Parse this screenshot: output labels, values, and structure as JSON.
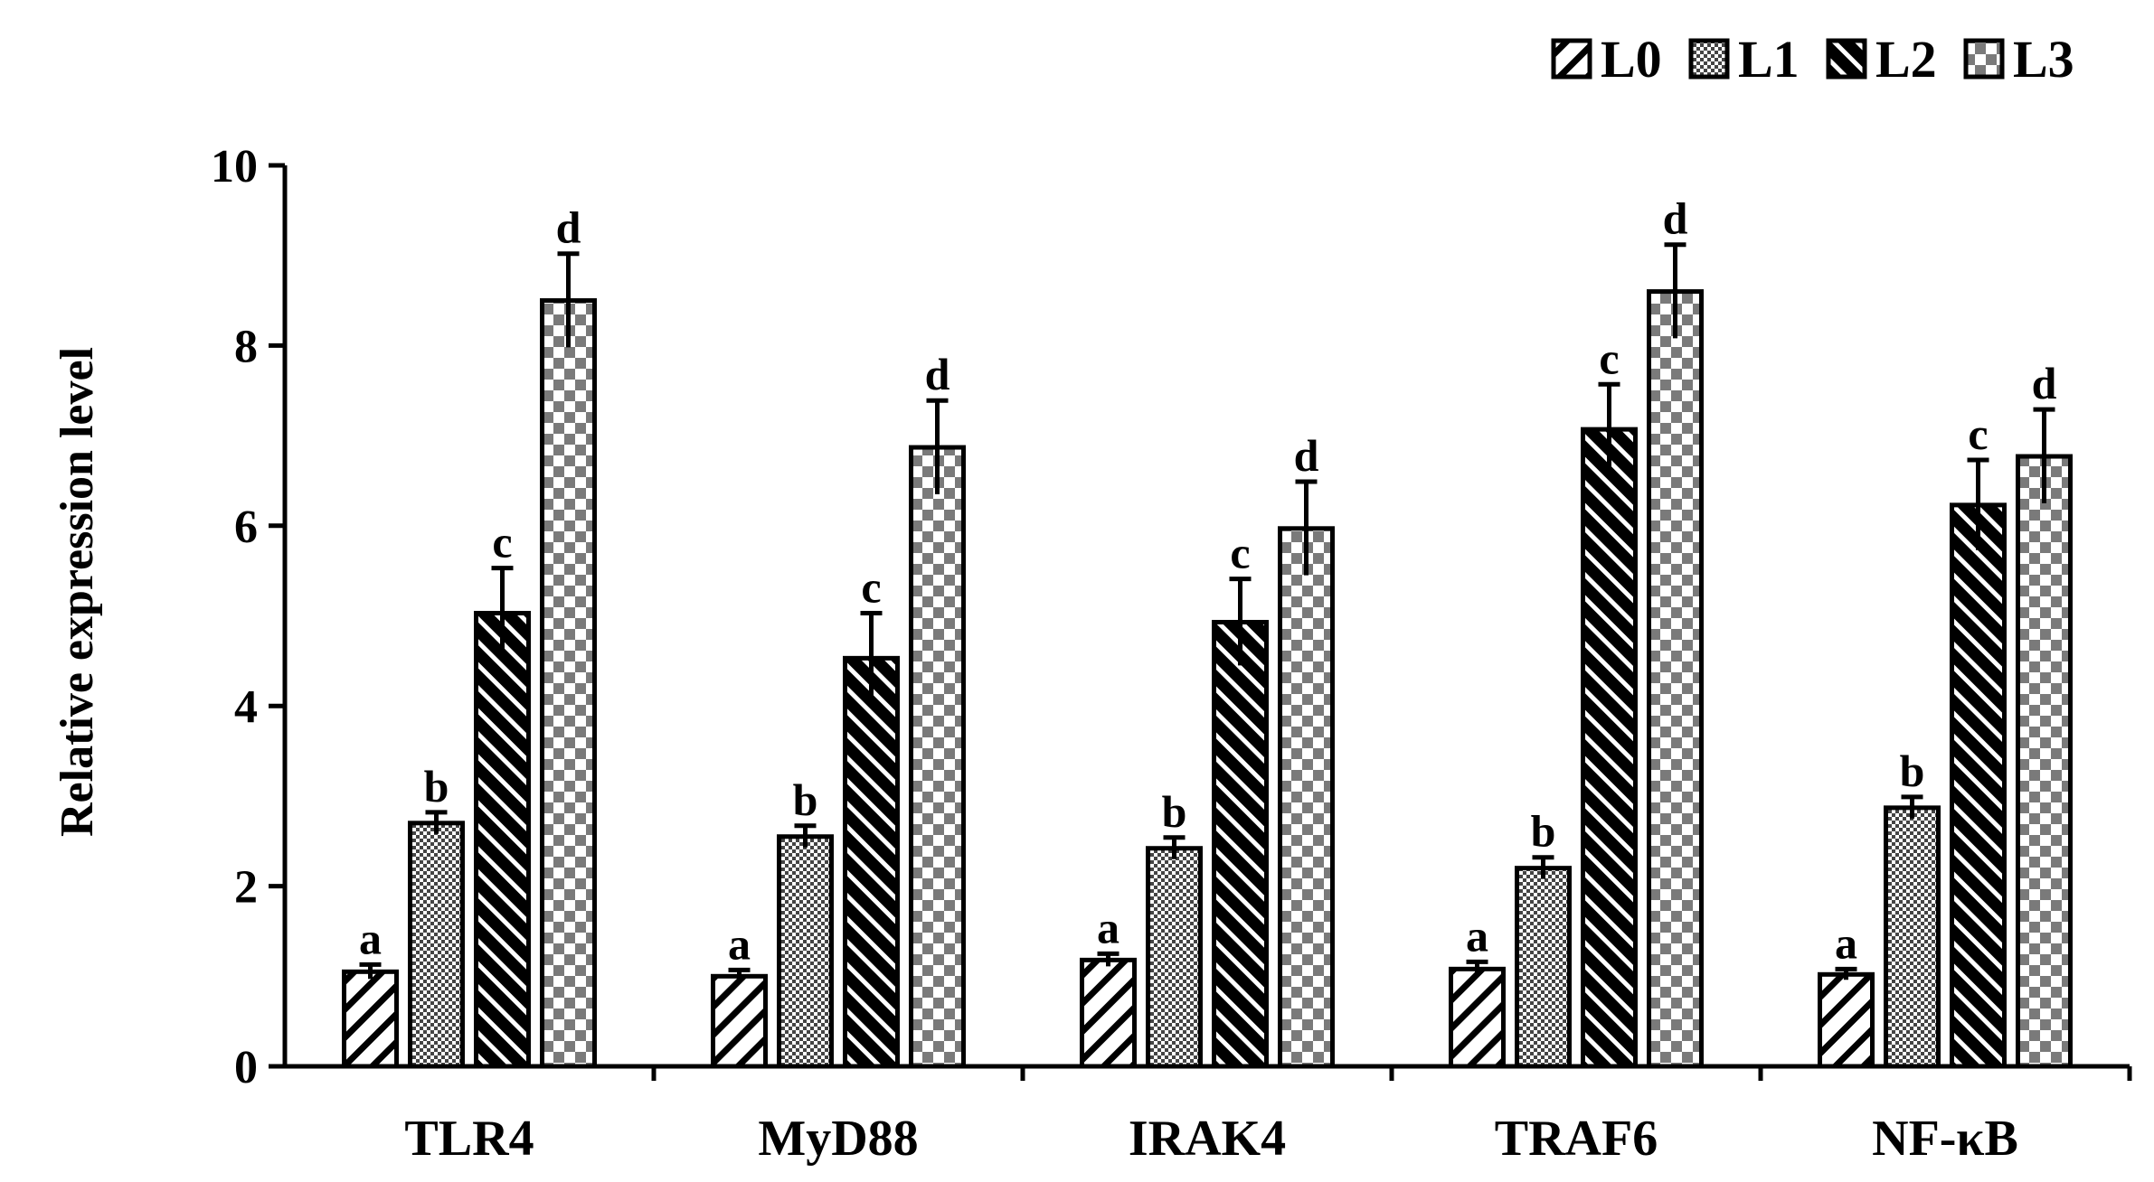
{
  "chart_data": {
    "type": "bar",
    "title": "",
    "xlabel": "",
    "ylabel": "Relative expression level",
    "ylim": [
      0,
      10
    ],
    "yticks": [
      0,
      2,
      4,
      6,
      8,
      10
    ],
    "ytick_labels": [
      "0",
      "2",
      "4",
      "6",
      "8",
      "10"
    ],
    "grid": false,
    "legend_position": "top-right",
    "categories": [
      "TLR4",
      "MyD88",
      "IRAK4",
      "TRAF6",
      "NF-κB"
    ],
    "series": [
      {
        "name": "L0",
        "pattern": "diagonal-hatch",
        "values": [
          1.05,
          1.0,
          1.18,
          1.08,
          1.02
        ],
        "errors": [
          0.08,
          0.07,
          0.07,
          0.08,
          0.06
        ],
        "labels": [
          "a",
          "a",
          "a",
          "a",
          "a"
        ]
      },
      {
        "name": "L1",
        "pattern": "fine-dots",
        "values": [
          2.7,
          2.55,
          2.42,
          2.2,
          2.87
        ],
        "errors": [
          0.12,
          0.12,
          0.12,
          0.12,
          0.12
        ],
        "labels": [
          "b",
          "b",
          "b",
          "b",
          "b"
        ]
      },
      {
        "name": "L2",
        "pattern": "dense-diagonal",
        "values": [
          5.03,
          4.53,
          4.93,
          7.07,
          6.23
        ],
        "errors": [
          0.5,
          0.5,
          0.48,
          0.5,
          0.5
        ],
        "labels": [
          "c",
          "c",
          "c",
          "c",
          "c"
        ]
      },
      {
        "name": "L3",
        "pattern": "checkerboard",
        "values": [
          8.5,
          6.87,
          5.97,
          8.6,
          6.77
        ],
        "errors": [
          0.52,
          0.52,
          0.52,
          0.52,
          0.52
        ],
        "labels": [
          "d",
          "d",
          "d",
          "d",
          "d"
        ]
      }
    ]
  }
}
